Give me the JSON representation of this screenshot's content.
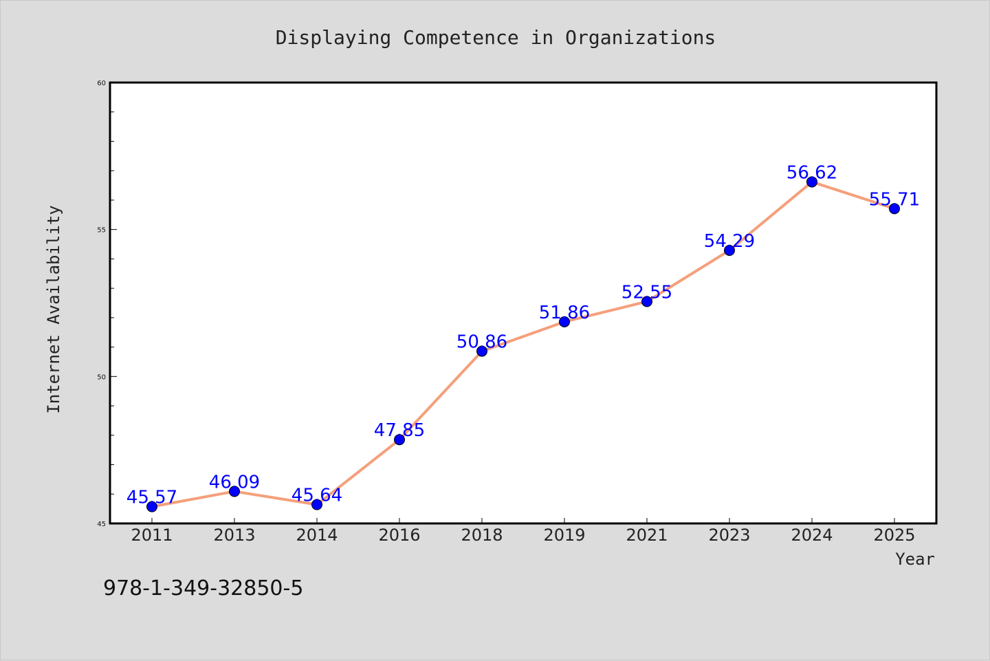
{
  "chart_data": {
    "type": "line",
    "title": "Displaying Competence in Organizations",
    "xlabel": "Year",
    "ylabel": "Internet Availability",
    "categories": [
      "2011",
      "2013",
      "2014",
      "2016",
      "2018",
      "2019",
      "2021",
      "2023",
      "2024",
      "2025"
    ],
    "series": [
      {
        "values": [
          45.57,
          46.09,
          45.64,
          47.85,
          50.86,
          51.86,
          52.55,
          54.29,
          56.62,
          55.71
        ],
        "labels": [
          "45.57",
          "46.09",
          "45.64",
          "47.85",
          "50.86",
          "51.86",
          "52.55",
          "54.29",
          "56.62",
          "55.71"
        ],
        "line_color": "#f4a07c",
        "marker_color": "#0000ff"
      }
    ],
    "ylim": [
      45,
      60
    ],
    "yticks": [
      "45",
      "50",
      "55",
      "60"
    ],
    "grid": false,
    "legend": "none"
  },
  "footer": {
    "text": "978-1-349-32850-5"
  }
}
